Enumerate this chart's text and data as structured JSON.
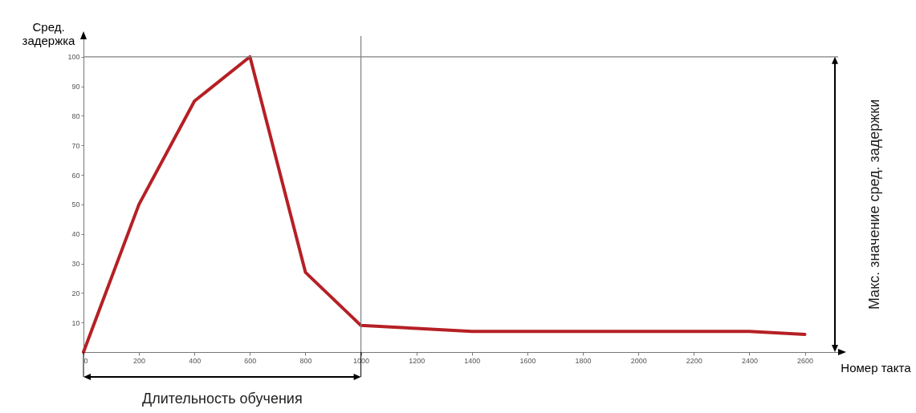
{
  "chart_data": {
    "type": "line",
    "xlabel": "Номер такта",
    "ylabel": "Сред. задержка",
    "x": [
      0,
      200,
      400,
      600,
      800,
      1000,
      1200,
      1400,
      1600,
      1800,
      2000,
      2200,
      2400,
      2600
    ],
    "series": [
      {
        "color": "#b52025",
        "values": [
          0,
          50,
          85,
          100,
          27,
          9,
          8,
          7,
          7,
          7,
          7,
          7,
          7,
          6
        ]
      }
    ],
    "xlim": [
      0,
      2720
    ],
    "ylim": [
      0,
      107
    ],
    "xticks": [
      0,
      200,
      400,
      600,
      800,
      1000,
      1200,
      1400,
      1600,
      1800,
      2000,
      2200,
      2400,
      2600
    ],
    "yticks": [
      10,
      20,
      30,
      40,
      50,
      60,
      70,
      80,
      90,
      100
    ],
    "grid": false,
    "line_style": "solid",
    "ref_lines": [
      {
        "axis": "y",
        "value": 100,
        "color": "#808080"
      },
      {
        "axis": "x",
        "value": 1000,
        "color": "#808080"
      }
    ],
    "annotations": [
      "Длительность обучения",
      "Макс. значение сред. задержки"
    ]
  }
}
